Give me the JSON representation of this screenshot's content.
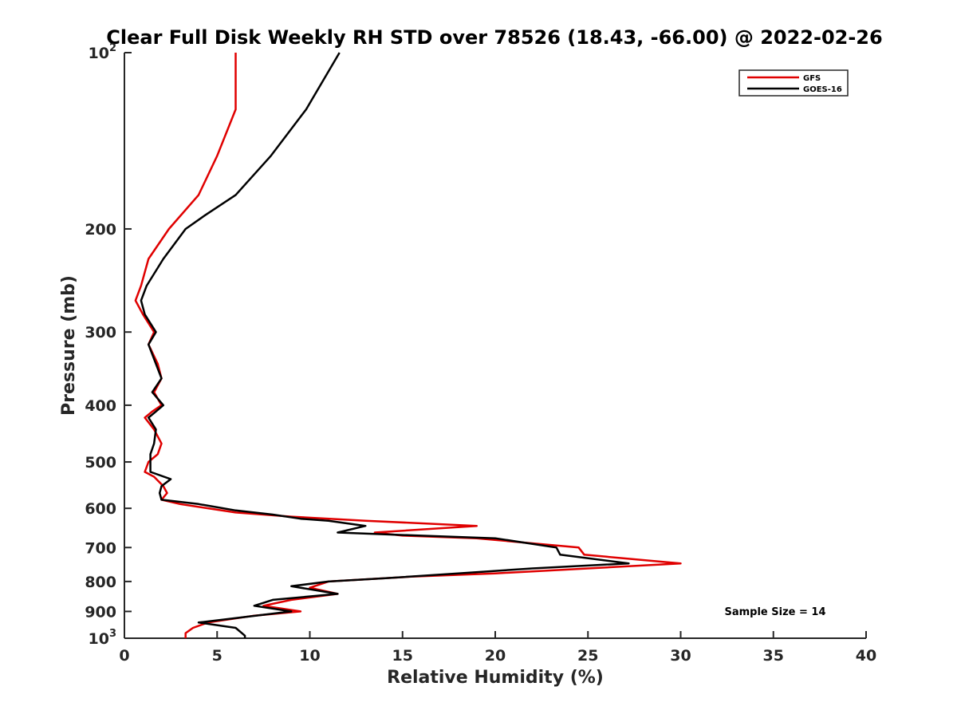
{
  "chart_data": {
    "type": "line",
    "title": "Clear Full Disk Weekly RH STD over 78526 (18.43, -66.00) @ 2022-02-26",
    "xlabel": "Relative Humidity (%)",
    "ylabel": "Pressure (mb)",
    "xlim": [
      0,
      40
    ],
    "ylim": [
      100,
      1000
    ],
    "y_scale": "log",
    "y_reversed": true,
    "x_ticks": [
      "0",
      "5",
      "10",
      "15",
      "20",
      "25",
      "30",
      "35",
      "40"
    ],
    "y_ticks": [
      {
        "value": 100,
        "base": "10",
        "exp": "2"
      },
      {
        "value": 200,
        "label": "200"
      },
      {
        "value": 300,
        "label": "300"
      },
      {
        "value": 400,
        "label": "400"
      },
      {
        "value": 500,
        "label": "500"
      },
      {
        "value": 600,
        "label": "600"
      },
      {
        "value": 700,
        "label": "700"
      },
      {
        "value": 800,
        "label": "800"
      },
      {
        "value": 900,
        "label": "900"
      },
      {
        "value": 1000,
        "base": "10",
        "exp": "3"
      }
    ],
    "grid": false,
    "legend_position": "top-right",
    "annotation": "Sample Size = 14",
    "series": [
      {
        "name": "GFS",
        "color": "#e00000",
        "points": [
          [
            6.0,
            100
          ],
          [
            6.0,
            125
          ],
          [
            5.0,
            150
          ],
          [
            4.0,
            175
          ],
          [
            2.4,
            200
          ],
          [
            1.3,
            225
          ],
          [
            0.9,
            250
          ],
          [
            0.6,
            265
          ],
          [
            1.0,
            280
          ],
          [
            1.6,
            300
          ],
          [
            1.3,
            315
          ],
          [
            1.8,
            340
          ],
          [
            2.0,
            360
          ],
          [
            1.6,
            380
          ],
          [
            2.0,
            400
          ],
          [
            1.5,
            410
          ],
          [
            1.1,
            420
          ],
          [
            1.6,
            440
          ],
          [
            2.0,
            465
          ],
          [
            1.8,
            485
          ],
          [
            1.3,
            500
          ],
          [
            1.1,
            520
          ],
          [
            1.6,
            530
          ],
          [
            2.1,
            550
          ],
          [
            2.3,
            565
          ],
          [
            2.0,
            580
          ],
          [
            3.0,
            590
          ],
          [
            6.0,
            610
          ],
          [
            9.0,
            620
          ],
          [
            13.0,
            630
          ],
          [
            19.0,
            643
          ],
          [
            13.5,
            660
          ],
          [
            15.0,
            668
          ],
          [
            19.0,
            675
          ],
          [
            24.5,
            700
          ],
          [
            24.8,
            720
          ],
          [
            30.0,
            745
          ],
          [
            25.0,
            760
          ],
          [
            20.0,
            775
          ],
          [
            15.5,
            785
          ],
          [
            11.0,
            800
          ],
          [
            10.0,
            820
          ],
          [
            11.5,
            840
          ],
          [
            9.0,
            860
          ],
          [
            7.5,
            880
          ],
          [
            9.5,
            900
          ],
          [
            7.0,
            915
          ],
          [
            4.5,
            940
          ],
          [
            3.7,
            960
          ],
          [
            3.3,
            980
          ],
          [
            3.3,
            1000
          ]
        ]
      },
      {
        "name": "GOES-16",
        "color": "#000000",
        "points": [
          [
            11.6,
            100
          ],
          [
            9.8,
            125
          ],
          [
            7.9,
            150
          ],
          [
            6.0,
            175
          ],
          [
            4.3,
            190
          ],
          [
            3.3,
            200
          ],
          [
            2.1,
            225
          ],
          [
            1.2,
            250
          ],
          [
            0.9,
            265
          ],
          [
            1.1,
            280
          ],
          [
            1.7,
            300
          ],
          [
            1.3,
            315
          ],
          [
            1.7,
            340
          ],
          [
            2.0,
            360
          ],
          [
            1.5,
            380
          ],
          [
            2.1,
            400
          ],
          [
            1.7,
            410
          ],
          [
            1.3,
            420
          ],
          [
            1.7,
            440
          ],
          [
            1.6,
            465
          ],
          [
            1.4,
            485
          ],
          [
            1.4,
            500
          ],
          [
            1.4,
            520
          ],
          [
            2.5,
            535
          ],
          [
            2.0,
            550
          ],
          [
            1.9,
            565
          ],
          [
            2.0,
            580
          ],
          [
            4.0,
            590
          ],
          [
            6.0,
            605
          ],
          [
            8.0,
            615
          ],
          [
            9.5,
            625
          ],
          [
            11.0,
            630
          ],
          [
            13.0,
            643
          ],
          [
            11.5,
            660
          ],
          [
            16.0,
            668
          ],
          [
            20.0,
            675
          ],
          [
            23.3,
            700
          ],
          [
            23.5,
            720
          ],
          [
            27.2,
            745
          ],
          [
            22.0,
            760
          ],
          [
            18.0,
            775
          ],
          [
            14.0,
            790
          ],
          [
            11.0,
            800
          ],
          [
            9.0,
            815
          ],
          [
            11.5,
            840
          ],
          [
            8.0,
            860
          ],
          [
            7.0,
            880
          ],
          [
            9.0,
            900
          ],
          [
            6.5,
            920
          ],
          [
            4.0,
            940
          ],
          [
            6.0,
            960
          ],
          [
            6.5,
            990
          ],
          [
            6.5,
            1000
          ]
        ]
      }
    ]
  }
}
